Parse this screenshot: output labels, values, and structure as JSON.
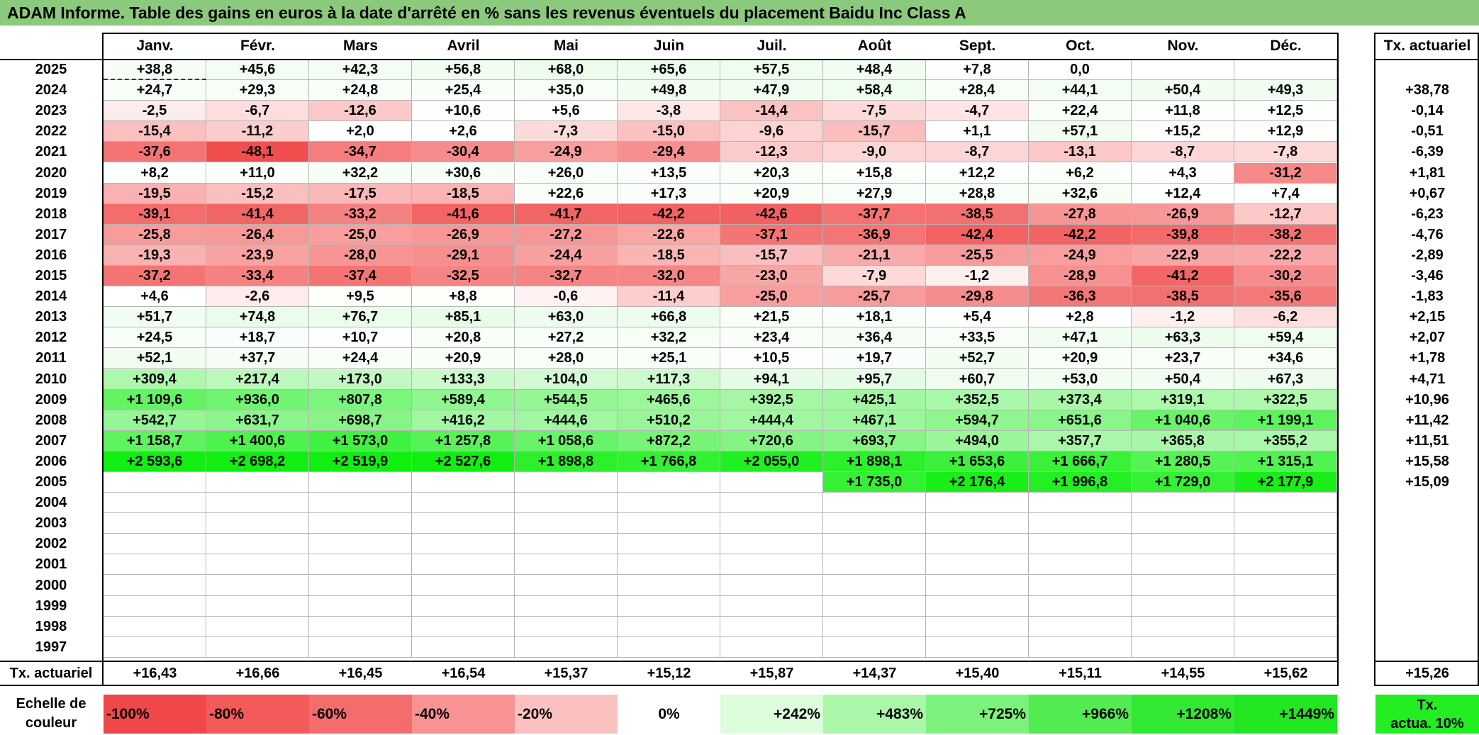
{
  "title": "ADAM Informe. Table des gains en euros à la date d'arrêté en % sans les revenus éventuels du placement Baidu Inc Class A",
  "months": [
    "Janv.",
    "Févr.",
    "Mars",
    "Avril",
    "Mai",
    "Juin",
    "Juil.",
    "Août",
    "Sept.",
    "Oct.",
    "Nov.",
    "Déc."
  ],
  "actuarial_header": "Tx. actuariel",
  "rows": [
    {
      "year": "2025",
      "values": [
        "+38,8",
        "+45,6",
        "+42,3",
        "+56,8",
        "+68,0",
        "+65,6",
        "+57,5",
        "+48,4",
        "+7,8",
        "0,0",
        "",
        ""
      ],
      "actuarial": ""
    },
    {
      "year": "2024",
      "values": [
        "+24,7",
        "+29,3",
        "+24,8",
        "+25,4",
        "+35,0",
        "+49,8",
        "+47,9",
        "+58,4",
        "+28,4",
        "+44,1",
        "+50,4",
        "+49,3"
      ],
      "actuarial": "+38,78"
    },
    {
      "year": "2023",
      "values": [
        "-2,5",
        "-6,7",
        "-12,6",
        "+10,6",
        "+5,6",
        "-3,8",
        "-14,4",
        "-7,5",
        "-4,7",
        "+22,4",
        "+11,8",
        "+12,5"
      ],
      "actuarial": "-0,14"
    },
    {
      "year": "2022",
      "values": [
        "-15,4",
        "-11,2",
        "+2,0",
        "+2,6",
        "-7,3",
        "-15,0",
        "-9,6",
        "-15,7",
        "+1,1",
        "+57,1",
        "+15,2",
        "+12,9"
      ],
      "actuarial": "-0,51"
    },
    {
      "year": "2021",
      "values": [
        "-37,6",
        "-48,1",
        "-34,7",
        "-30,4",
        "-24,9",
        "-29,4",
        "-12,3",
        "-9,0",
        "-8,7",
        "-13,1",
        "-8,7",
        "-7,8"
      ],
      "actuarial": "-6,39"
    },
    {
      "year": "2020",
      "values": [
        "+8,2",
        "+11,0",
        "+32,2",
        "+30,6",
        "+26,0",
        "+13,5",
        "+20,3",
        "+15,8",
        "+12,2",
        "+6,2",
        "+4,3",
        "-31,2"
      ],
      "actuarial": "+1,81"
    },
    {
      "year": "2019",
      "values": [
        "-19,5",
        "-15,2",
        "-17,5",
        "-18,5",
        "+22,6",
        "+17,3",
        "+20,9",
        "+27,9",
        "+28,8",
        "+32,6",
        "+12,4",
        "+7,4"
      ],
      "actuarial": "+0,67"
    },
    {
      "year": "2018",
      "values": [
        "-39,1",
        "-41,4",
        "-33,2",
        "-41,6",
        "-41,7",
        "-42,2",
        "-42,6",
        "-37,7",
        "-38,5",
        "-27,8",
        "-26,9",
        "-12,7"
      ],
      "actuarial": "-6,23"
    },
    {
      "year": "2017",
      "values": [
        "-25,8",
        "-26,4",
        "-25,0",
        "-26,9",
        "-27,2",
        "-22,6",
        "-37,1",
        "-36,9",
        "-42,4",
        "-42,2",
        "-39,8",
        "-38,2"
      ],
      "actuarial": "-4,76"
    },
    {
      "year": "2016",
      "values": [
        "-19,3",
        "-23,9",
        "-28,0",
        "-29,1",
        "-24,4",
        "-18,5",
        "-15,7",
        "-21,1",
        "-25,5",
        "-24,9",
        "-22,9",
        "-22,2"
      ],
      "actuarial": "-2,89"
    },
    {
      "year": "2015",
      "values": [
        "-37,2",
        "-33,4",
        "-37,4",
        "-32,5",
        "-32,7",
        "-32,0",
        "-23,0",
        "-7,9",
        "-1,2",
        "-28,9",
        "-41,2",
        "-30,2"
      ],
      "actuarial": "-3,46"
    },
    {
      "year": "2014",
      "values": [
        "+4,6",
        "-2,6",
        "+9,5",
        "+8,8",
        "-0,6",
        "-11,4",
        "-25,0",
        "-25,7",
        "-29,8",
        "-36,3",
        "-38,5",
        "-35,6"
      ],
      "actuarial": "-1,83"
    },
    {
      "year": "2013",
      "values": [
        "+51,7",
        "+74,8",
        "+76,7",
        "+85,1",
        "+63,0",
        "+66,8",
        "+21,5",
        "+18,1",
        "+5,4",
        "+2,8",
        "-1,2",
        "-6,2"
      ],
      "actuarial": "+2,15"
    },
    {
      "year": "2012",
      "values": [
        "+24,5",
        "+18,7",
        "+10,7",
        "+20,8",
        "+27,2",
        "+32,2",
        "+23,4",
        "+36,4",
        "+33,5",
        "+47,1",
        "+63,3",
        "+59,4"
      ],
      "actuarial": "+2,07"
    },
    {
      "year": "2011",
      "values": [
        "+52,1",
        "+37,7",
        "+24,4",
        "+20,9",
        "+28,0",
        "+25,1",
        "+10,5",
        "+19,7",
        "+52,7",
        "+20,9",
        "+23,7",
        "+34,6"
      ],
      "actuarial": "+1,78"
    },
    {
      "year": "2010",
      "values": [
        "+309,4",
        "+217,4",
        "+173,0",
        "+133,3",
        "+104,0",
        "+117,3",
        "+94,1",
        "+95,7",
        "+60,7",
        "+53,0",
        "+50,4",
        "+67,3"
      ],
      "actuarial": "+4,71"
    },
    {
      "year": "2009",
      "values": [
        "+1 109,6",
        "+936,0",
        "+807,8",
        "+589,4",
        "+544,5",
        "+465,6",
        "+392,5",
        "+425,1",
        "+352,5",
        "+373,4",
        "+319,1",
        "+322,5"
      ],
      "actuarial": "+10,96"
    },
    {
      "year": "2008",
      "values": [
        "+542,7",
        "+631,7",
        "+698,7",
        "+416,2",
        "+444,6",
        "+510,2",
        "+444,4",
        "+467,1",
        "+594,7",
        "+651,6",
        "+1 040,6",
        "+1 199,1"
      ],
      "actuarial": "+11,42"
    },
    {
      "year": "2007",
      "values": [
        "+1 158,7",
        "+1 400,6",
        "+1 573,0",
        "+1 257,8",
        "+1 058,6",
        "+872,2",
        "+720,6",
        "+693,7",
        "+494,0",
        "+357,7",
        "+365,8",
        "+355,2"
      ],
      "actuarial": "+11,51"
    },
    {
      "year": "2006",
      "values": [
        "+2 593,6",
        "+2 698,2",
        "+2 519,9",
        "+2 527,6",
        "+1 898,8",
        "+1 766,8",
        "+2 055,0",
        "+1 898,1",
        "+1 653,6",
        "+1 666,7",
        "+1 280,5",
        "+1 315,1"
      ],
      "actuarial": "+15,58"
    },
    {
      "year": "2005",
      "values": [
        "",
        "",
        "",
        "",
        "",
        "",
        "",
        "+1 735,0",
        "+2 176,4",
        "+1 996,8",
        "+1 729,0",
        "+2 177,9"
      ],
      "actuarial": "+15,09"
    },
    {
      "year": "2004",
      "values": [
        "",
        "",
        "",
        "",
        "",
        "",
        "",
        "",
        "",
        "",
        "",
        ""
      ],
      "actuarial": ""
    },
    {
      "year": "2003",
      "values": [
        "",
        "",
        "",
        "",
        "",
        "",
        "",
        "",
        "",
        "",
        "",
        ""
      ],
      "actuarial": ""
    },
    {
      "year": "2002",
      "values": [
        "",
        "",
        "",
        "",
        "",
        "",
        "",
        "",
        "",
        "",
        "",
        ""
      ],
      "actuarial": ""
    },
    {
      "year": "2001",
      "values": [
        "",
        "",
        "",
        "",
        "",
        "",
        "",
        "",
        "",
        "",
        "",
        ""
      ],
      "actuarial": ""
    },
    {
      "year": "2000",
      "values": [
        "",
        "",
        "",
        "",
        "",
        "",
        "",
        "",
        "",
        "",
        "",
        ""
      ],
      "actuarial": ""
    },
    {
      "year": "1999",
      "values": [
        "",
        "",
        "",
        "",
        "",
        "",
        "",
        "",
        "",
        "",
        "",
        ""
      ],
      "actuarial": ""
    },
    {
      "year": "1998",
      "values": [
        "",
        "",
        "",
        "",
        "",
        "",
        "",
        "",
        "",
        "",
        "",
        ""
      ],
      "actuarial": ""
    },
    {
      "year": "1997",
      "values": [
        "",
        "",
        "",
        "",
        "",
        "",
        "",
        "",
        "",
        "",
        "",
        ""
      ],
      "actuarial": ""
    }
  ],
  "footer": {
    "label": "Tx. actuariel",
    "values": [
      "+16,43",
      "+16,66",
      "+16,45",
      "+16,54",
      "+15,37",
      "+15,12",
      "+15,87",
      "+14,37",
      "+15,40",
      "+15,11",
      "+14,55",
      "+15,62"
    ],
    "actuarial": "+15,26"
  },
  "legend": {
    "label_line1": "Echelle de",
    "label_line2": "couleur",
    "scale": [
      {
        "text": "-100%",
        "color": "#f04848"
      },
      {
        "text": "-80%",
        "color": "#f35a5a"
      },
      {
        "text": "-60%",
        "color": "#f56c6c"
      },
      {
        "text": "-40%",
        "color": "#f89393"
      },
      {
        "text": "-20%",
        "color": "#fbc1c1"
      },
      {
        "text": "0%",
        "color": "#ffffff"
      },
      {
        "text": "+242%",
        "color": "#dcfcdc"
      },
      {
        "text": "+483%",
        "color": "#aaf7aa"
      },
      {
        "text": "+725%",
        "color": "#7cf27c"
      },
      {
        "text": "+966%",
        "color": "#52ec52"
      },
      {
        "text": "+1208%",
        "color": "#33e833"
      },
      {
        "text": "+1449%",
        "color": "#22e622"
      }
    ],
    "last_line1": "Tx.",
    "last_line2": "actua. 10%"
  }
}
